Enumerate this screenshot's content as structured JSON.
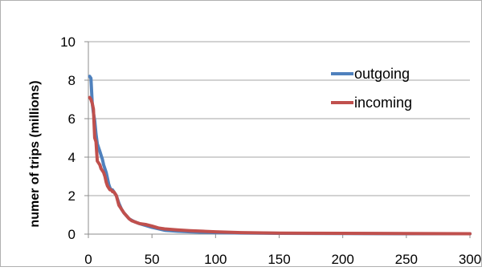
{
  "chart_data": {
    "type": "line",
    "title": "",
    "xlabel": "",
    "ylabel": "numer of trips (millions)",
    "xlim": [
      0,
      300
    ],
    "ylim": [
      0,
      10
    ],
    "x_ticks": [
      "0",
      "50",
      "100",
      "150",
      "200",
      "250",
      "300"
    ],
    "y_ticks": [
      "0",
      "2",
      "4",
      "6",
      "8",
      "10"
    ],
    "grid": "horizontal",
    "legend_position": "inside-right",
    "series": [
      {
        "name": "outgoing",
        "color": "#4f81bd",
        "x": [
          1,
          2,
          3,
          4,
          5,
          6,
          7,
          8,
          9,
          10,
          11,
          12,
          13,
          14,
          15,
          16,
          17,
          18,
          19,
          20,
          22,
          24,
          26,
          28,
          30,
          32,
          34,
          36,
          38,
          40,
          45,
          50,
          55,
          60,
          70,
          80,
          90,
          100,
          120,
          150,
          200,
          250,
          300
        ],
        "y": [
          8.2,
          8.1,
          6.8,
          6.3,
          5.9,
          5.2,
          4.7,
          4.5,
          4.3,
          4.1,
          3.9,
          3.6,
          3.4,
          3.2,
          2.9,
          2.6,
          2.4,
          2.3,
          2.3,
          2.2,
          2.0,
          1.6,
          1.3,
          1.1,
          0.95,
          0.8,
          0.72,
          0.65,
          0.6,
          0.55,
          0.45,
          0.35,
          0.28,
          0.2,
          0.15,
          0.12,
          0.1,
          0.08,
          0.06,
          0.04,
          0.03,
          0.02,
          0.02
        ]
      },
      {
        "name": "incoming",
        "color": "#c0504d",
        "x": [
          1,
          2,
          3,
          4,
          5,
          6,
          7,
          8,
          9,
          10,
          11,
          12,
          13,
          14,
          15,
          16,
          17,
          18,
          19,
          20,
          22,
          24,
          26,
          28,
          30,
          32,
          34,
          36,
          38,
          40,
          45,
          50,
          55,
          60,
          70,
          80,
          90,
          100,
          120,
          150,
          200,
          250,
          300
        ],
        "y": [
          7.1,
          7.0,
          6.8,
          6.5,
          5.0,
          4.8,
          3.8,
          3.7,
          3.6,
          3.4,
          3.3,
          3.2,
          3.0,
          2.7,
          2.5,
          2.4,
          2.3,
          2.3,
          2.2,
          2.2,
          2.0,
          1.5,
          1.3,
          1.1,
          0.95,
          0.8,
          0.7,
          0.65,
          0.6,
          0.55,
          0.5,
          0.42,
          0.32,
          0.27,
          0.22,
          0.18,
          0.15,
          0.12,
          0.08,
          0.05,
          0.04,
          0.03,
          0.02
        ]
      }
    ]
  }
}
